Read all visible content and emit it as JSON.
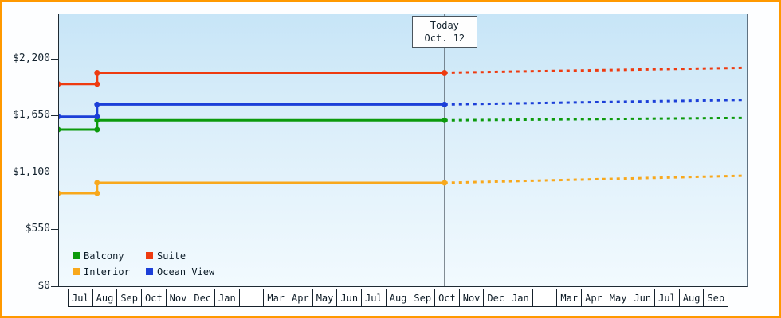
{
  "chart_data": {
    "type": "line",
    "x_unit": "month_index_from_first_Jul",
    "y_axis": {
      "ticks": [
        {
          "label": "$2,200",
          "value": 2200
        },
        {
          "label": "$1,650",
          "value": 1650
        },
        {
          "label": "$1,100",
          "value": 1100
        },
        {
          "label": "$550",
          "value": 550
        },
        {
          "label": "$0",
          "value": 0
        }
      ],
      "max_value": 2630
    },
    "x_axis": {
      "months": [
        "Jul",
        "Aug",
        "Sep",
        "Oct",
        "Nov",
        "Dec",
        "Jan",
        "",
        "Mar",
        "Apr",
        "May",
        "Jun",
        "Jul",
        "Aug",
        "Sep",
        "Oct",
        "Nov",
        "Dec",
        "Jan",
        "",
        "Mar",
        "Apr",
        "May",
        "Jun",
        "Jul",
        "Aug",
        "Sep"
      ]
    },
    "today": {
      "label_line1": "Today",
      "label_line2": "Oct. 12",
      "month_position": 15.4
    },
    "series": [
      {
        "name": "Balcony",
        "color": "#0c9a0c",
        "points_solid": [
          [
            -0.39,
            1515
          ],
          [
            1.2,
            1515
          ],
          [
            1.2,
            1605
          ],
          [
            15.4,
            1605
          ]
        ],
        "points_forecast_dashed": [
          [
            15.4,
            1605
          ],
          [
            27.6,
            1628
          ]
        ],
        "marker_points": [
          [
            -0.39,
            1515
          ],
          [
            1.2,
            1515
          ],
          [
            1.2,
            1605
          ],
          [
            15.4,
            1605
          ]
        ]
      },
      {
        "name": "Suite",
        "color": "#ee3b10",
        "points_solid": [
          [
            -0.39,
            1955
          ],
          [
            1.2,
            1955
          ],
          [
            1.2,
            2065
          ],
          [
            15.4,
            2065
          ]
        ],
        "points_forecast_dashed": [
          [
            15.4,
            2065
          ],
          [
            27.6,
            2112
          ]
        ],
        "marker_points": [
          [
            -0.39,
            1955
          ],
          [
            1.2,
            1955
          ],
          [
            1.2,
            2065
          ],
          [
            15.4,
            2065
          ]
        ]
      },
      {
        "name": "Interior",
        "color": "#f8a81c",
        "points_solid": [
          [
            -0.39,
            900
          ],
          [
            1.2,
            900
          ],
          [
            1.2,
            1000
          ],
          [
            15.4,
            1000
          ]
        ],
        "points_forecast_dashed": [
          [
            15.4,
            1000
          ],
          [
            27.6,
            1068
          ]
        ],
        "marker_points": [
          [
            -0.39,
            900
          ],
          [
            1.2,
            900
          ],
          [
            1.2,
            1000
          ],
          [
            15.4,
            1000
          ]
        ]
      },
      {
        "name": "Ocean View",
        "color": "#1c3fd8",
        "points_solid": [
          [
            -0.39,
            1640
          ],
          [
            1.2,
            1640
          ],
          [
            1.2,
            1758
          ],
          [
            15.4,
            1758
          ]
        ],
        "points_forecast_dashed": [
          [
            15.4,
            1758
          ],
          [
            27.6,
            1802
          ]
        ],
        "marker_points": [
          [
            -0.39,
            1640
          ],
          [
            1.2,
            1640
          ],
          [
            1.2,
            1758
          ],
          [
            15.4,
            1758
          ]
        ]
      }
    ],
    "legend": {
      "position": "bottom-left",
      "rows": [
        [
          "Balcony",
          "Suite"
        ],
        [
          "Interior",
          "Ocean View"
        ]
      ]
    }
  },
  "colors": {
    "frame_border": "#ff9900",
    "today_line": "#4a5560",
    "axis": "#1e2a33",
    "plot_bg_top": "#c7e5f7",
    "plot_bg_bottom": "#f2fafe"
  }
}
